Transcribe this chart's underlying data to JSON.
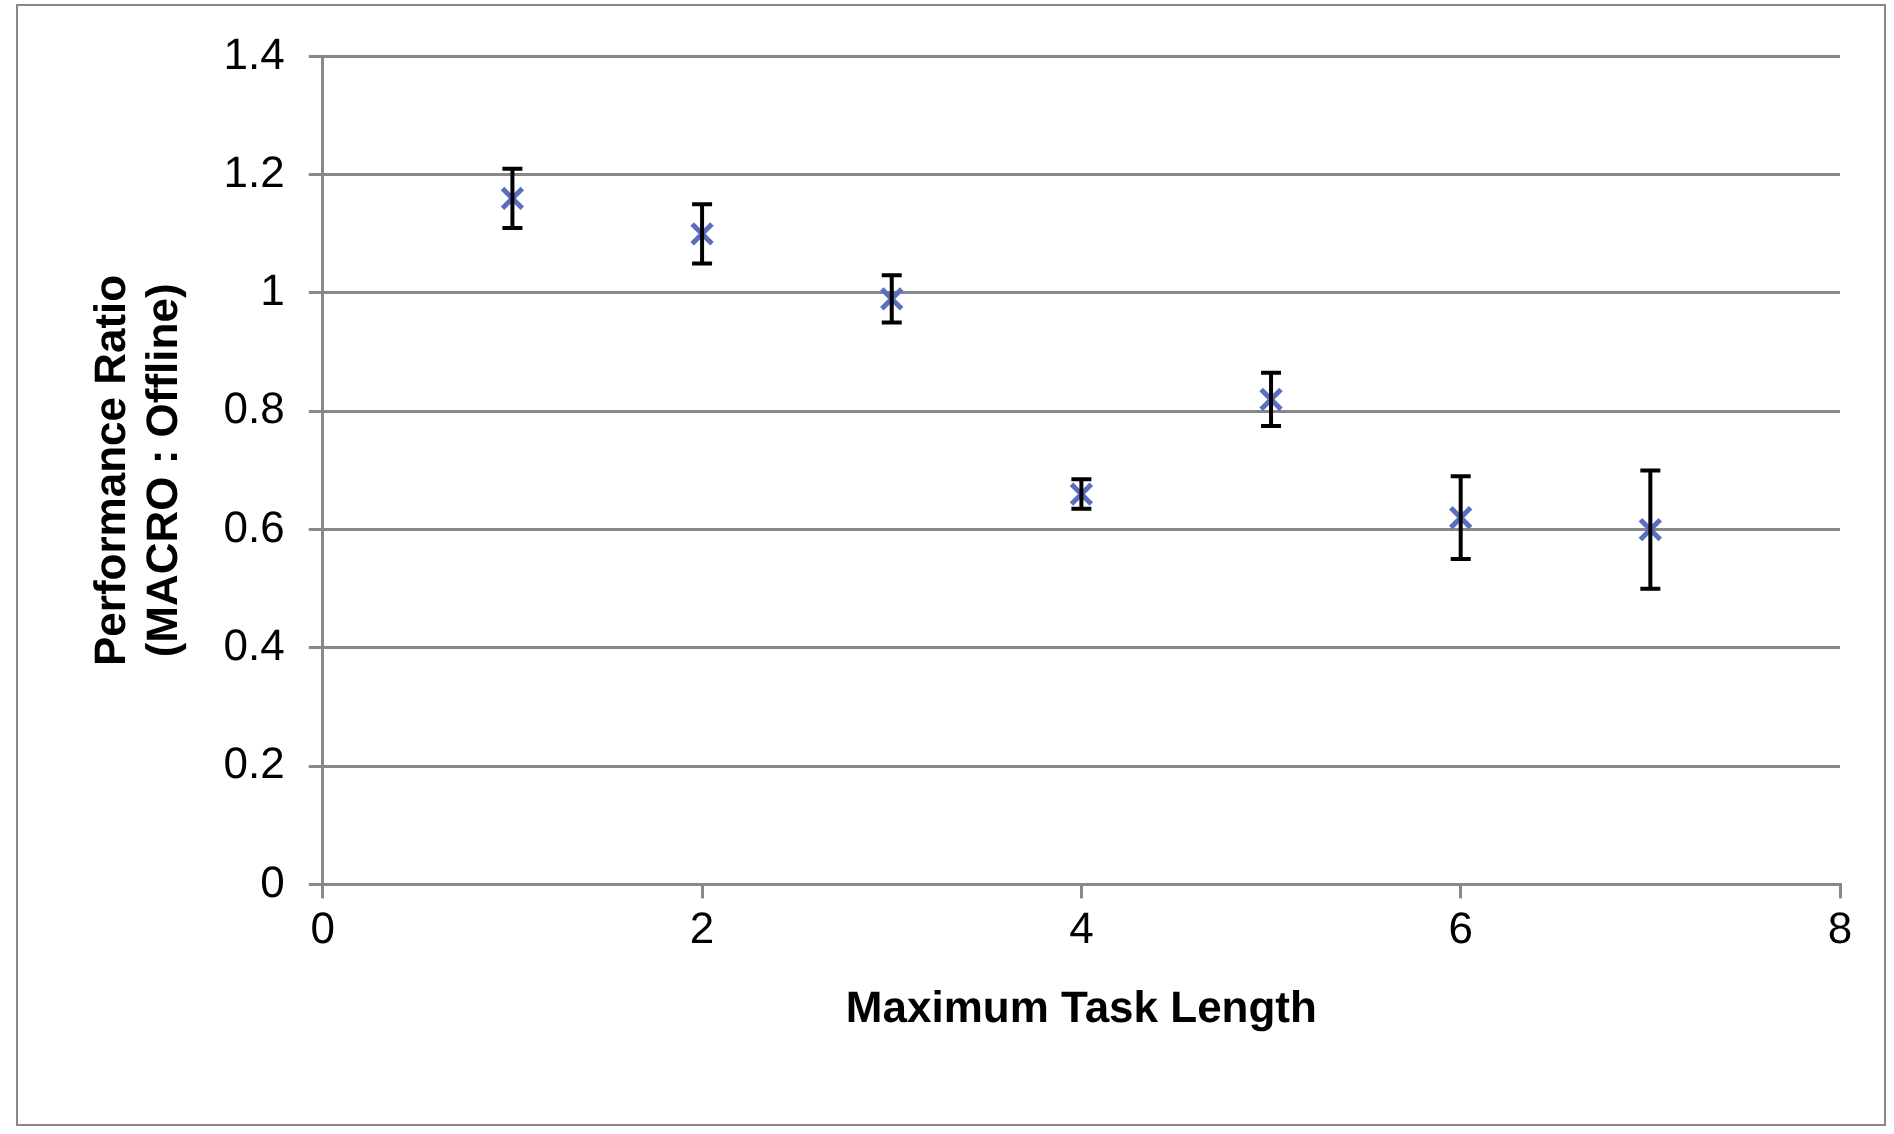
{
  "chart_data": {
    "type": "scatter",
    "xlabel": "Maximum Task Length",
    "ylabel": "Performance Ratio\n(MACRO : Offline)",
    "x": [
      1,
      2,
      3,
      4,
      5,
      6,
      7
    ],
    "series": [
      {
        "color": "#5b6fc0",
        "values": [
          1.16,
          1.1,
          0.99,
          0.66,
          0.82,
          0.62,
          0.6
        ],
        "errors": [
          0.05,
          0.05,
          0.04,
          0.025,
          0.045,
          0.07,
          0.1
        ]
      }
    ],
    "xlim": [
      0,
      8
    ],
    "xticks": [
      0,
      2,
      4,
      6,
      8
    ],
    "ylim": [
      0,
      1.4
    ],
    "yticks": [
      0,
      0.2,
      0.4,
      0.6,
      0.8,
      1,
      1.2,
      1.4
    ],
    "grid": "y",
    "legend": false,
    "marker": "cross"
  }
}
